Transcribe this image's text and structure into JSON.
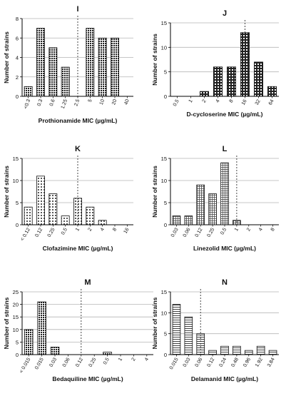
{
  "chart_data": [
    {
      "panel": "I",
      "type": "bar",
      "pattern": "dense",
      "xlabel": "Prothionamide MIC (µg/mL)",
      "ylabel": "Number of strains",
      "categories": [
        "<0.3",
        "0.3",
        "0.6",
        "1.25",
        "2.5",
        "5",
        "10",
        "20",
        "40"
      ],
      "values": [
        1,
        7,
        5,
        3,
        0,
        7,
        6,
        6,
        0
      ],
      "ylim": [
        0,
        8
      ],
      "yticks": [
        "0",
        "2",
        "4",
        "6",
        "8"
      ],
      "cutoff_category": "2.5",
      "grid": true
    },
    {
      "panel": "J",
      "type": "bar",
      "pattern": "checker",
      "xlabel": "D-cycloserine MIC (µg/mL)",
      "ylabel": "Number of strains",
      "categories": [
        "0.5",
        "1",
        "2",
        "4",
        "8",
        "16",
        "32",
        "64"
      ],
      "values": [
        0,
        0,
        1,
        6,
        6,
        13,
        7,
        2
      ],
      "ylim": [
        0,
        15
      ],
      "yticks": [
        "0",
        "5",
        "10",
        "15"
      ],
      "cutoff_category": "16",
      "grid": true
    },
    {
      "panel": "K",
      "type": "bar",
      "pattern": "dots",
      "xlabel": "Clofazimine MIC (µg/mL)",
      "ylabel": "Number of strains",
      "categories": [
        "< 0.12",
        "0.12",
        "0.25",
        "0.5",
        "1",
        "2",
        "4",
        "8",
        "16"
      ],
      "values": [
        4,
        11,
        7,
        2,
        6,
        4,
        1,
        0,
        0
      ],
      "ylim": [
        0,
        15
      ],
      "yticks": [
        "0",
        "5",
        "10",
        "15"
      ],
      "cutoff_category": "1",
      "grid": true
    },
    {
      "panel": "L",
      "type": "bar",
      "pattern": "grid",
      "xlabel": "Linezolid MIC (µg/mL)",
      "ylabel": "Number of strains",
      "categories": [
        "0.03",
        "0.06",
        "0.12",
        "0.25",
        "0.5",
        "1",
        "2",
        "4",
        "8"
      ],
      "values": [
        2,
        2,
        9,
        7,
        14,
        1,
        0,
        0,
        0
      ],
      "ylim": [
        0,
        15
      ],
      "yticks": [
        "0",
        "5",
        "10",
        "15"
      ],
      "cutoff_category": "1",
      "grid": true
    },
    {
      "panel": "M",
      "type": "bar",
      "pattern": "dense",
      "xlabel": "Bedaquiline MIC (µg/mL)",
      "ylabel": "Number of strains",
      "categories": [
        "< 0.015",
        "0.015",
        "0.03",
        "0.06",
        "0.12",
        "0.25",
        "0.5",
        "1",
        "2",
        "4"
      ],
      "values": [
        10,
        21,
        3,
        0,
        0,
        0,
        1,
        0,
        0,
        0
      ],
      "ylim": [
        0,
        25
      ],
      "yticks": [
        "0",
        "5",
        "10",
        "15",
        "20",
        "25"
      ],
      "cutoff_category": "0.12",
      "grid": true
    },
    {
      "panel": "N",
      "type": "bar",
      "pattern": "hatch",
      "xlabel": "Delamanid MIC (µg/mL)",
      "ylabel": "Number of strains",
      "categories": [
        "0.015",
        "0.03",
        "0.06",
        "0.12",
        "0.24",
        "0.48",
        "0.96",
        "1.92",
        "3.84"
      ],
      "values": [
        12,
        9,
        5,
        1,
        2,
        2,
        1,
        2,
        1
      ],
      "ylim": [
        0,
        15
      ],
      "yticks": [
        "0",
        "5",
        "10",
        "15"
      ],
      "cutoff_category": "0.06",
      "grid": true
    }
  ]
}
